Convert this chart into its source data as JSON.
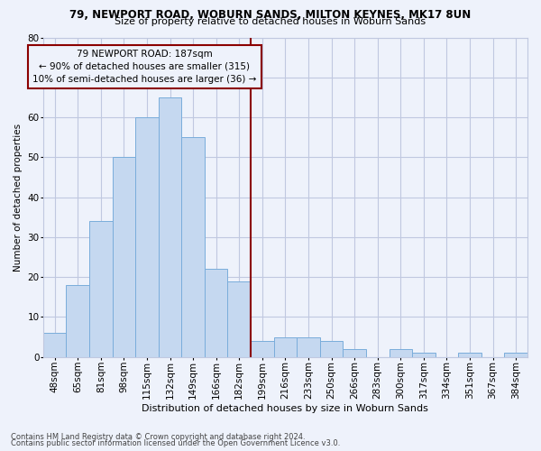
{
  "title": "79, NEWPORT ROAD, WOBURN SANDS, MILTON KEYNES, MK17 8UN",
  "subtitle": "Size of property relative to detached houses in Woburn Sands",
  "xlabel": "Distribution of detached houses by size in Woburn Sands",
  "ylabel": "Number of detached properties",
  "footnote1": "Contains HM Land Registry data © Crown copyright and database right 2024.",
  "footnote2": "Contains public sector information licensed under the Open Government Licence v3.0.",
  "annotation_line1": "79 NEWPORT ROAD: 187sqm",
  "annotation_line2": "← 90% of detached houses are smaller (315)",
  "annotation_line3": "10% of semi-detached houses are larger (36) →",
  "categories": [
    "48sqm",
    "65sqm",
    "81sqm",
    "98sqm",
    "115sqm",
    "132sqm",
    "149sqm",
    "166sqm",
    "182sqm",
    "199sqm",
    "216sqm",
    "233sqm",
    "250sqm",
    "266sqm",
    "283sqm",
    "300sqm",
    "317sqm",
    "334sqm",
    "351sqm",
    "367sqm",
    "384sqm"
  ],
  "values": [
    6,
    18,
    34,
    50,
    60,
    65,
    55,
    22,
    19,
    4,
    5,
    5,
    4,
    2,
    0,
    2,
    1,
    0,
    1,
    0,
    1
  ],
  "bar_color": "#c5d8f0",
  "bar_edge_color": "#7aaddb",
  "vline_x": 8.5,
  "vline_color": "#8b0000",
  "background_color": "#eef2fb",
  "grid_color": "#c0c8e0",
  "ylim": [
    0,
    80
  ],
  "yticks": [
    0,
    10,
    20,
    30,
    40,
    50,
    60,
    70,
    80
  ],
  "annotation_box_color": "#8b0000",
  "title_fontsize": 8.5,
  "subtitle_fontsize": 8.0,
  "xlabel_fontsize": 8.0,
  "ylabel_fontsize": 7.5,
  "tick_fontsize": 7.5,
  "footnote_fontsize": 6.0,
  "annotation_fontsize": 7.5
}
